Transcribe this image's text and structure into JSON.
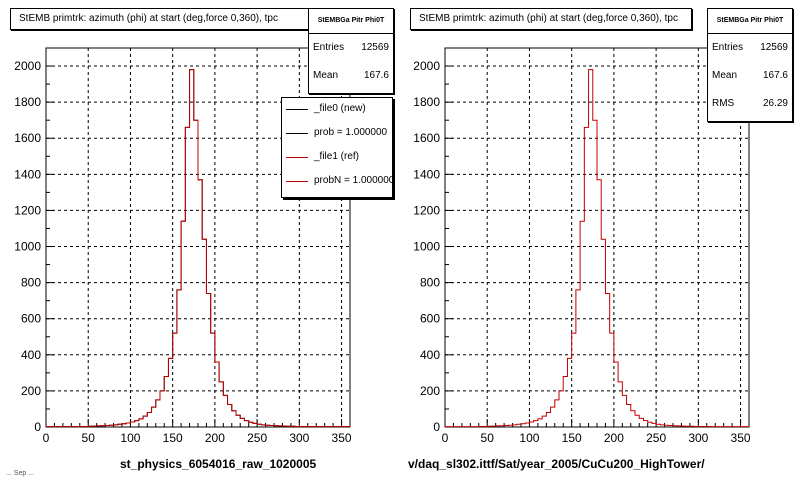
{
  "colors": {
    "new": "#000000",
    "ref": "#c00000",
    "grid": "#000000"
  },
  "panels": [
    {
      "title": "StEMB primtrk: azimuth (phi) at start (deg,force 0,360), tpc",
      "stats": {
        "name": "StEMBGa Pitr Phi0T",
        "rows": [
          {
            "label": "Entries",
            "value": "12569"
          },
          {
            "label": "Mean",
            "value": "167.6"
          }
        ]
      },
      "legend": [
        {
          "label": "_file0 (new)",
          "color": "#000000"
        },
        {
          "label": "prob = 1.000000",
          "color": "#000000"
        },
        {
          "label": "_file1 (ref)",
          "color": "#c00000"
        },
        {
          "label": "probN = 1.000000",
          "color": "#c00000"
        }
      ],
      "footer": "st_physics_6054016_raw_1020005"
    },
    {
      "title": "StEMB primtrk: azimuth (phi) at start (deg,force 0,360), tpc",
      "stats": {
        "name": "StEMBGa Pitr Phi0T",
        "rows": [
          {
            "label": "Entries",
            "value": "12569"
          },
          {
            "label": "Mean",
            "value": "167.6"
          },
          {
            "label": "RMS",
            "value": "26.29"
          }
        ]
      },
      "footer": "v/daq_sl302.ittf/Sat/year_2005/CuCu200_HighTower/"
    }
  ],
  "corner_text": "... Sep ...",
  "chart_data": [
    {
      "type": "histogram",
      "title": "StEMB primtrk: azimuth (phi) at start (deg,force 0,360), tpc",
      "xlabel": "st_physics_6054016_raw_1020005",
      "ylabel": "",
      "xlim": [
        0,
        360
      ],
      "ylim": [
        0,
        2100
      ],
      "xticks": [
        0,
        50,
        100,
        150,
        200,
        250,
        300,
        350
      ],
      "yticks": [
        0,
        200,
        400,
        600,
        800,
        1000,
        1200,
        1400,
        1600,
        1800,
        2000
      ],
      "grid": true,
      "bin_width": 5,
      "series": [
        {
          "name": "_file0 (new)",
          "values": [
            2,
            2,
            2,
            2,
            2,
            2,
            2,
            2,
            3,
            3,
            4,
            5,
            6,
            7,
            8,
            10,
            12,
            15,
            18,
            22,
            28,
            35,
            45,
            60,
            80,
            110,
            150,
            200,
            280,
            380,
            520,
            760,
            1140,
            1660,
            1980,
            1700,
            1370,
            1040,
            740,
            520,
            360,
            250,
            175,
            125,
            90,
            65,
            48,
            35,
            26,
            20,
            15,
            12,
            10,
            8,
            7,
            6,
            5,
            4,
            4,
            3,
            3,
            3,
            3,
            2,
            2,
            2,
            2,
            2,
            2,
            2,
            2,
            2
          ]
        },
        {
          "name": "_file1 (ref)",
          "values": [
            2,
            2,
            2,
            2,
            2,
            2,
            2,
            2,
            3,
            3,
            4,
            5,
            6,
            7,
            8,
            10,
            12,
            15,
            18,
            22,
            28,
            35,
            45,
            60,
            80,
            110,
            150,
            200,
            280,
            380,
            520,
            760,
            1140,
            1660,
            1980,
            1700,
            1370,
            1040,
            740,
            520,
            360,
            250,
            175,
            125,
            90,
            65,
            48,
            35,
            26,
            20,
            15,
            12,
            10,
            8,
            7,
            6,
            5,
            4,
            4,
            3,
            3,
            3,
            3,
            2,
            2,
            2,
            2,
            2,
            2,
            2,
            2,
            2
          ]
        }
      ]
    },
    {
      "type": "histogram",
      "title": "StEMB primtrk: azimuth (phi) at start (deg,force 0,360), tpc",
      "xlabel": "v/daq_sl302.ittf/Sat/year_2005/CuCu200_HighTower/",
      "ylabel": "",
      "xlim": [
        0,
        360
      ],
      "ylim": [
        0,
        2100
      ],
      "xticks": [
        0,
        50,
        100,
        150,
        200,
        250,
        300,
        350
      ],
      "yticks": [
        0,
        200,
        400,
        600,
        800,
        1000,
        1200,
        1400,
        1600,
        1800,
        2000
      ],
      "grid": true,
      "bin_width": 5,
      "series": [
        {
          "name": "_file1 (ref)",
          "values": [
            2,
            2,
            2,
            2,
            2,
            2,
            2,
            2,
            3,
            3,
            4,
            5,
            6,
            7,
            8,
            10,
            12,
            15,
            18,
            22,
            28,
            35,
            45,
            60,
            80,
            110,
            150,
            200,
            280,
            380,
            520,
            760,
            1140,
            1660,
            1980,
            1700,
            1370,
            1040,
            740,
            520,
            360,
            250,
            175,
            125,
            90,
            65,
            48,
            35,
            26,
            20,
            15,
            12,
            10,
            8,
            7,
            6,
            5,
            4,
            4,
            3,
            3,
            3,
            3,
            2,
            2,
            2,
            2,
            2,
            2,
            2,
            2,
            2
          ]
        }
      ]
    }
  ]
}
